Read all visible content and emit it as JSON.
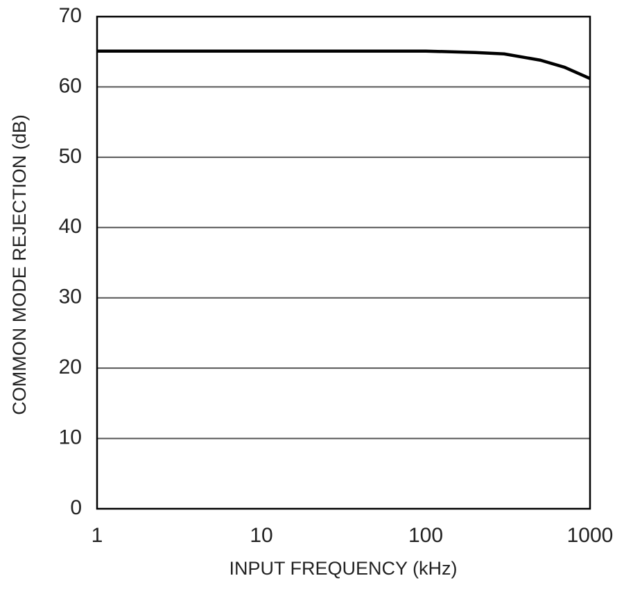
{
  "chart_data": {
    "type": "line",
    "xlabel": "INPUT FREQUENCY (kHz)",
    "ylabel": "COMMON MODE REJECTION (dB)",
    "xscale": "log",
    "x": [
      1,
      10,
      100,
      200,
      300,
      500,
      700,
      1000
    ],
    "series": [
      {
        "color": "#000000",
        "values": [
          65.1,
          65.1,
          65.1,
          64.9,
          64.7,
          63.8,
          62.8,
          61.2
        ]
      }
    ],
    "xlim": [
      1,
      1000
    ],
    "xticks": [
      1,
      10,
      100,
      1000
    ],
    "ylim": [
      0,
      70
    ],
    "yticks": [
      0,
      10,
      20,
      30,
      40,
      50,
      60,
      70
    ],
    "grid": "y"
  }
}
